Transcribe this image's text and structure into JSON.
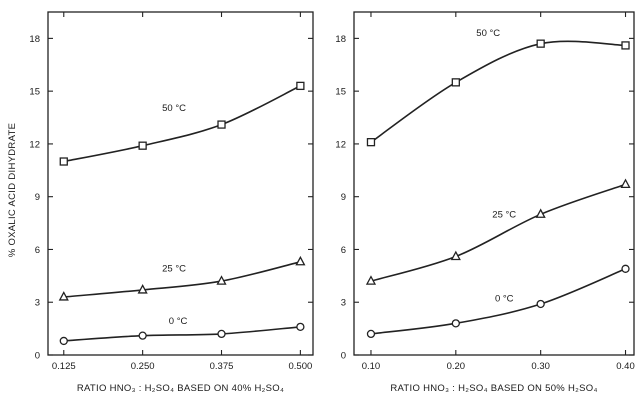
{
  "figure": {
    "ylabel": "% OXALIC ACID DIHYDRATE"
  },
  "chart_data": [
    {
      "type": "line",
      "xlabel": "RATIO HNO₃ : H₂SO₄ BASED ON 40% H₂SO₄",
      "ylabel": "% OXALIC ACID DIHYDRATE",
      "xlim": [
        0.1,
        0.52
      ],
      "ylim": [
        0,
        19.5
      ],
      "xticks": [
        0.125,
        0.25,
        0.375,
        0.5
      ],
      "xtick_labels": [
        "0.125",
        "0.250",
        "0.375",
        "0.500"
      ],
      "yticks": [
        0,
        3,
        6,
        9,
        12,
        15,
        18
      ],
      "ytick_labels": [
        "0",
        "3",
        "6",
        "9",
        "12",
        "15",
        "18"
      ],
      "series": [
        {
          "name": "50 °C",
          "marker": "square",
          "x": [
            0.125,
            0.25,
            0.375,
            0.5
          ],
          "y": [
            11.0,
            11.9,
            13.1,
            15.3
          ]
        },
        {
          "name": "25 °C",
          "marker": "triangle",
          "x": [
            0.125,
            0.25,
            0.375,
            0.5
          ],
          "y": [
            3.3,
            3.7,
            4.2,
            5.3
          ]
        },
        {
          "name": "0 °C",
          "marker": "circle",
          "x": [
            0.125,
            0.25,
            0.375,
            0.5
          ],
          "y": [
            0.8,
            1.1,
            1.2,
            1.6
          ]
        }
      ]
    },
    {
      "type": "line",
      "xlabel": "RATIO HNO₃ : H₂SO₄ BASED ON 50% H₂SO₄",
      "ylabel": "",
      "xlim": [
        0.08,
        0.41
      ],
      "ylim": [
        0,
        19.5
      ],
      "xticks": [
        0.1,
        0.2,
        0.3,
        0.4
      ],
      "xtick_labels": [
        "0.10",
        "0.20",
        "0.30",
        "0.40"
      ],
      "yticks": [
        0,
        3,
        6,
        9,
        12,
        15,
        18
      ],
      "ytick_labels": [
        "0",
        "3",
        "6",
        "9",
        "12",
        "15",
        "18"
      ],
      "series": [
        {
          "name": "50 °C",
          "marker": "square",
          "x": [
            0.1,
            0.2,
            0.3,
            0.4
          ],
          "y": [
            12.1,
            15.5,
            17.7,
            17.6
          ]
        },
        {
          "name": "25 °C",
          "marker": "triangle",
          "x": [
            0.1,
            0.2,
            0.3,
            0.4
          ],
          "y": [
            4.2,
            5.6,
            8.0,
            9.7
          ]
        },
        {
          "name": "0 °C",
          "marker": "circle",
          "x": [
            0.1,
            0.2,
            0.3,
            0.4
          ],
          "y": [
            1.2,
            1.8,
            2.9,
            4.9
          ]
        }
      ]
    }
  ]
}
